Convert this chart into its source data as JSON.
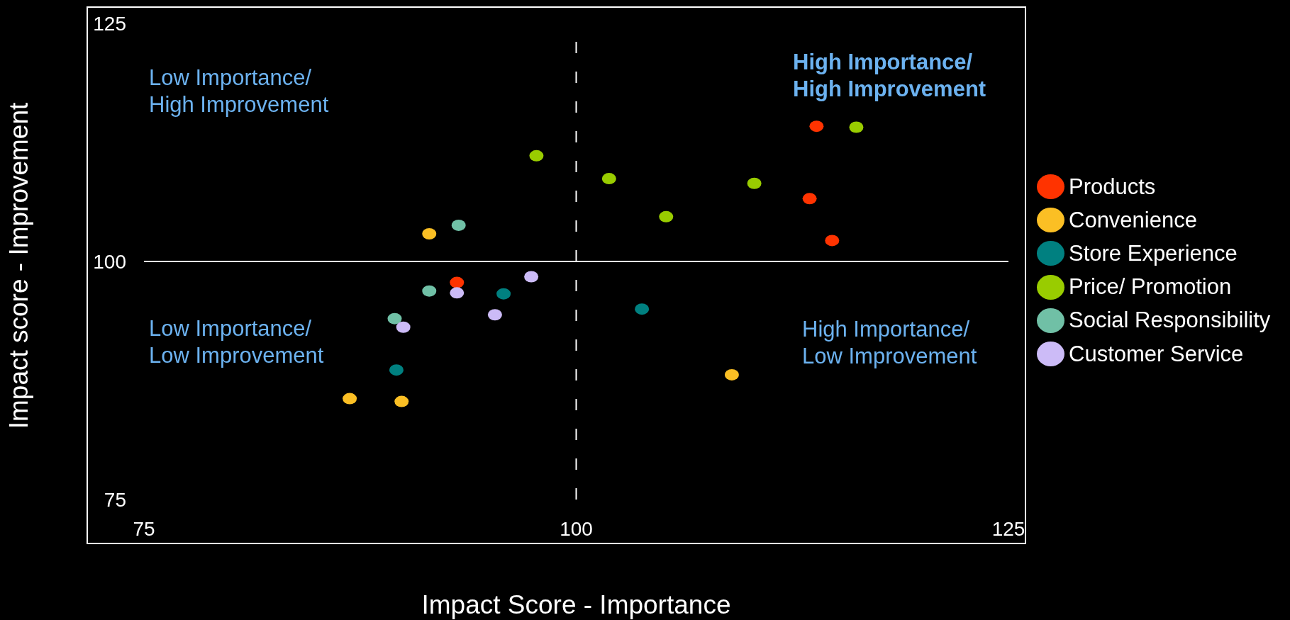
{
  "chart_data": {
    "type": "scatter",
    "xlabel": "Impact Score - Importance",
    "ylabel": "Impact score - Improvement",
    "xlim": [
      75,
      125
    ],
    "ylim": [
      75,
      125
    ],
    "xticks": [
      75,
      100,
      125
    ],
    "yticks": [
      75,
      100,
      125
    ],
    "legend": "right",
    "marker": "circle",
    "ref_lines": [
      {
        "axis": "x",
        "value": 100,
        "color": "#ffffff",
        "line_style": "dashed"
      },
      {
        "axis": "y",
        "value": 100,
        "color": "#ffffff",
        "line_style": "solid"
      }
    ],
    "annotations": [
      "Low Importance/\nHigh Improvement",
      "High Importance/\nHigh Improvement",
      "Low Importance/\nLow Improvement",
      "High Importance/\nLow Improvement"
    ],
    "series": [
      {
        "name": "Products",
        "color": "#ff3300",
        "x": [
          93.1,
          113.9,
          113.5,
          114.8
        ],
        "values": [
          97.8,
          114.2,
          106.6,
          102.2
        ]
      },
      {
        "name": "Convenience",
        "color": "#fbbf24",
        "x": [
          91.5,
          86.9,
          89.9,
          109.0
        ],
        "values": [
          102.9,
          85.6,
          85.3,
          88.1
        ]
      },
      {
        "name": "Store Experience",
        "color": "#008080",
        "x": [
          95.8,
          89.6,
          103.8
        ],
        "values": [
          96.6,
          88.6,
          95.0
        ]
      },
      {
        "name": "Price/ Promotion",
        "color": "#99cc00",
        "x": [
          97.7,
          116.2,
          101.9,
          110.3,
          105.2
        ],
        "values": [
          111.1,
          114.1,
          108.7,
          108.2,
          104.7
        ]
      },
      {
        "name": "Social Responsibility",
        "color": "#70c0a6",
        "x": [
          93.2,
          91.5,
          89.5
        ],
        "values": [
          103.8,
          96.9,
          94.0
        ]
      },
      {
        "name": "Customer Service",
        "color": "#ccbbf7",
        "x": [
          97.4,
          93.1,
          95.3,
          90.0
        ],
        "values": [
          98.4,
          96.7,
          94.4,
          93.1
        ]
      }
    ]
  }
}
